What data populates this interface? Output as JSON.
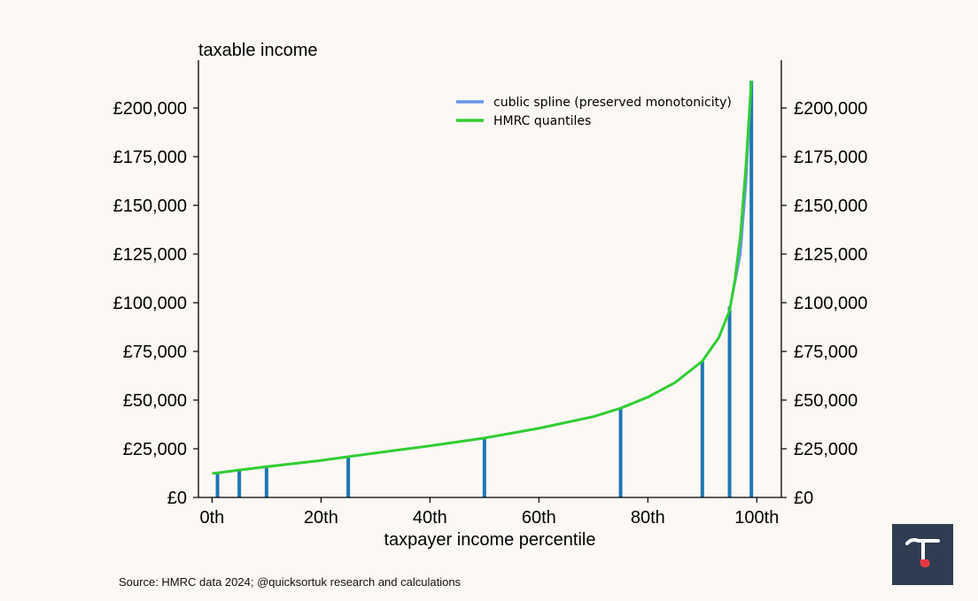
{
  "chart_data": {
    "type": "line",
    "ylabel": "taxable income",
    "xlabel": "taxpayer income percentile",
    "x_ticks": [
      {
        "value": 0,
        "label": "0th"
      },
      {
        "value": 20,
        "label": "20th"
      },
      {
        "value": 40,
        "label": "40th"
      },
      {
        "value": 60,
        "label": "60th"
      },
      {
        "value": 80,
        "label": "80th"
      },
      {
        "value": 100,
        "label": "100th"
      }
    ],
    "y_ticks": [
      {
        "value": 0,
        "label": "£0"
      },
      {
        "value": 25000,
        "label": "£25,000"
      },
      {
        "value": 50000,
        "label": "£50,000"
      },
      {
        "value": 75000,
        "label": "£75,000"
      },
      {
        "value": 100000,
        "label": "£100,000"
      },
      {
        "value": 125000,
        "label": "£125,000"
      },
      {
        "value": 150000,
        "label": "£150,000"
      },
      {
        "value": 175000,
        "label": "£175,000"
      },
      {
        "value": 200000,
        "label": "£200,000"
      }
    ],
    "xlim": [
      -2.5,
      104.5
    ],
    "ylim": [
      0,
      225000
    ],
    "legend_position": "top-right",
    "series": [
      {
        "name": "cublic spline (preserved monotonicity)",
        "color": "#6495ed",
        "kind": "line",
        "x": [
          1,
          5,
          10,
          20,
          30,
          40,
          50,
          60,
          70,
          75,
          80,
          85,
          90,
          93,
          95,
          97,
          98,
          99
        ],
        "y": [
          12500,
          14000,
          15700,
          19000,
          22800,
          26500,
          30500,
          35500,
          41500,
          45800,
          51500,
          59000,
          70000,
          82000,
          96000,
          125000,
          160000,
          214000
        ]
      },
      {
        "name": "HMRC quantiles",
        "color": "#32cd32",
        "kind": "line",
        "x": [
          0,
          1,
          5,
          10,
          20,
          30,
          40,
          50,
          60,
          70,
          75,
          80,
          85,
          90,
          93,
          95,
          96,
          97,
          98,
          99
        ],
        "y": [
          12300,
          12600,
          14100,
          15800,
          19000,
          22800,
          26500,
          30500,
          35500,
          41500,
          45800,
          51500,
          59000,
          70000,
          82000,
          96000,
          112000,
          135000,
          170000,
          214000
        ]
      },
      {
        "name": "",
        "color": "#1f77b4",
        "kind": "stems",
        "x": [
          1,
          5,
          10,
          25,
          50,
          75,
          90,
          95,
          99
        ],
        "y": [
          13000,
          14000,
          16000,
          21000,
          31000,
          46000,
          70000,
          98000,
          214000
        ]
      }
    ]
  },
  "footer": {
    "source": "Source: HMRC data 2024; @quicksortuk research and calculations"
  },
  "logo": {
    "icon": "tau-logo-icon",
    "bg_color": "#2e3d4f",
    "glyph_color": "#ffffff",
    "accent_color": "#e63946"
  }
}
